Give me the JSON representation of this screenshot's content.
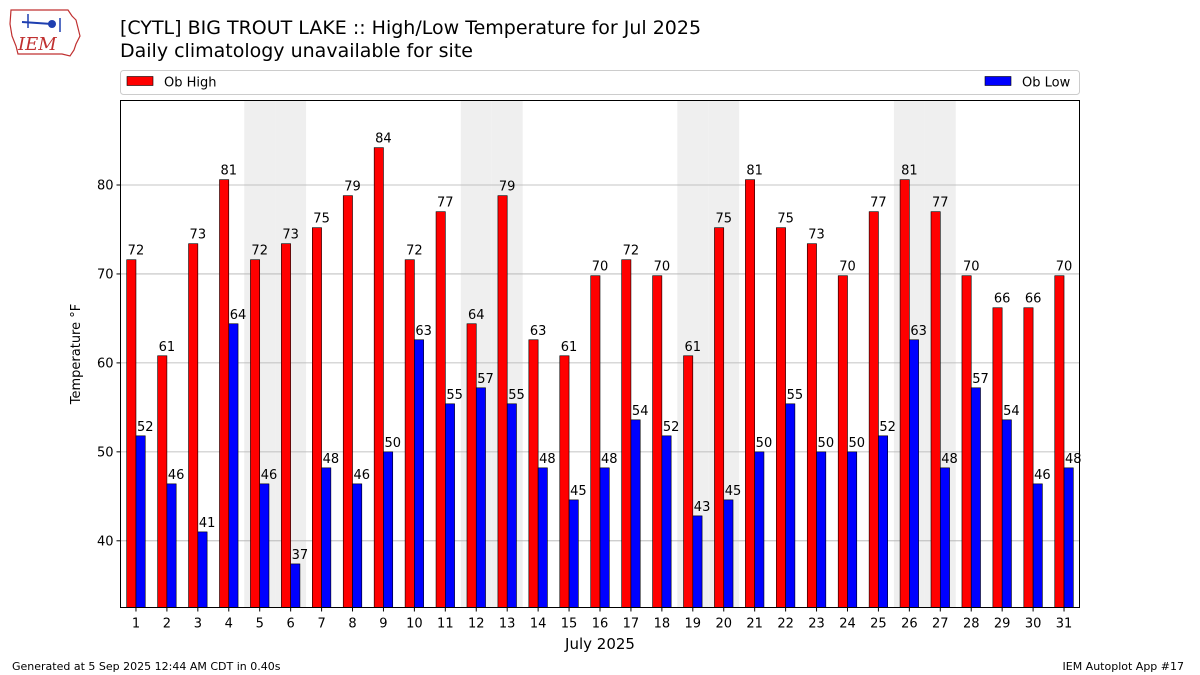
{
  "header": {
    "title": "[CYTL] BIG TROUT LAKE :: High/Low Temperature for Jul 2025",
    "subtitle": "Daily climatology unavailable for site"
  },
  "logo": {
    "text": "IEM"
  },
  "footer": {
    "generated": "Generated at 5 Sep 2025 12:44 AM CDT in 0.40s",
    "app": "IEM Autoplot App #17"
  },
  "chart_data": {
    "type": "bar",
    "title": "[CYTL] BIG TROUT LAKE :: High/Low Temperature for Jul 2025",
    "subtitle": "Daily climatology unavailable for site",
    "xlabel": "July 2025",
    "ylabel": "Temperature °F",
    "ylim": [
      32.5,
      89.5
    ],
    "yticks": [
      40,
      50,
      60,
      70,
      80
    ],
    "grid": "horizontal",
    "legend_placement": "top",
    "weekend_shading_days": [
      5,
      6,
      12,
      13,
      19,
      20,
      26,
      27
    ],
    "categories": [
      "1",
      "2",
      "3",
      "4",
      "5",
      "6",
      "7",
      "8",
      "9",
      "10",
      "11",
      "12",
      "13",
      "14",
      "15",
      "16",
      "17",
      "18",
      "19",
      "20",
      "21",
      "22",
      "23",
      "24",
      "25",
      "26",
      "27",
      "28",
      "29",
      "30",
      "31"
    ],
    "series": [
      {
        "name": "Ob High",
        "color": "#ff0000",
        "values": [
          71.6,
          60.8,
          73.4,
          80.6,
          71.6,
          73.4,
          75.2,
          78.8,
          84.2,
          71.6,
          77.0,
          64.4,
          78.8,
          62.6,
          60.8,
          69.8,
          71.6,
          69.8,
          60.8,
          75.2,
          80.6,
          75.2,
          73.4,
          69.8,
          77.0,
          80.6,
          77.0,
          69.8,
          66.2,
          66.2,
          69.8
        ],
        "labels": [
          "72",
          "61",
          "73",
          "81",
          "72",
          "73",
          "75",
          "79",
          "84",
          "72",
          "77",
          "64",
          "79",
          "63",
          "61",
          "70",
          "72",
          "70",
          "61",
          "75",
          "81",
          "75",
          "73",
          "70",
          "77",
          "81",
          "77",
          "70",
          "66",
          "66",
          "70"
        ]
      },
      {
        "name": "Ob Low",
        "color": "#0000ff",
        "values": [
          51.8,
          46.4,
          41.0,
          64.4,
          46.4,
          37.4,
          48.2,
          46.4,
          50.0,
          62.6,
          55.4,
          57.2,
          55.4,
          48.2,
          44.6,
          48.2,
          53.6,
          51.8,
          42.8,
          44.6,
          50.0,
          55.4,
          50.0,
          50.0,
          51.8,
          62.6,
          48.2,
          57.2,
          53.6,
          46.4,
          48.2
        ],
        "labels": [
          "52",
          "46",
          "41",
          "64",
          "46",
          "37",
          "48",
          "46",
          "50",
          "63",
          "55",
          "57",
          "55",
          "48",
          "45",
          "48",
          "54",
          "52",
          "43",
          "45",
          "50",
          "55",
          "50",
          "50",
          "52",
          "63",
          "48",
          "57",
          "54",
          "46",
          "48"
        ]
      }
    ]
  }
}
